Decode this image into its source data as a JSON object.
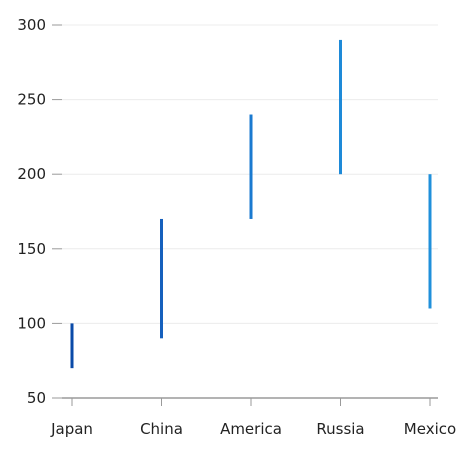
{
  "chart_data": {
    "type": "range-bar",
    "categories": [
      "Japan",
      "China",
      "America",
      "Russia",
      "Mexico"
    ],
    "series": [
      {
        "low": [
          70,
          90,
          170,
          200,
          110
        ],
        "high": [
          100,
          170,
          240,
          290,
          200
        ]
      }
    ],
    "ylim": [
      50,
      300
    ],
    "y_ticks": [
      50,
      100,
      150,
      200,
      250,
      300
    ],
    "grid": true,
    "colors": [
      "#0a4aa8",
      "#1560bd",
      "#1a7ad0",
      "#1e8ad8",
      "#2090db"
    ]
  }
}
